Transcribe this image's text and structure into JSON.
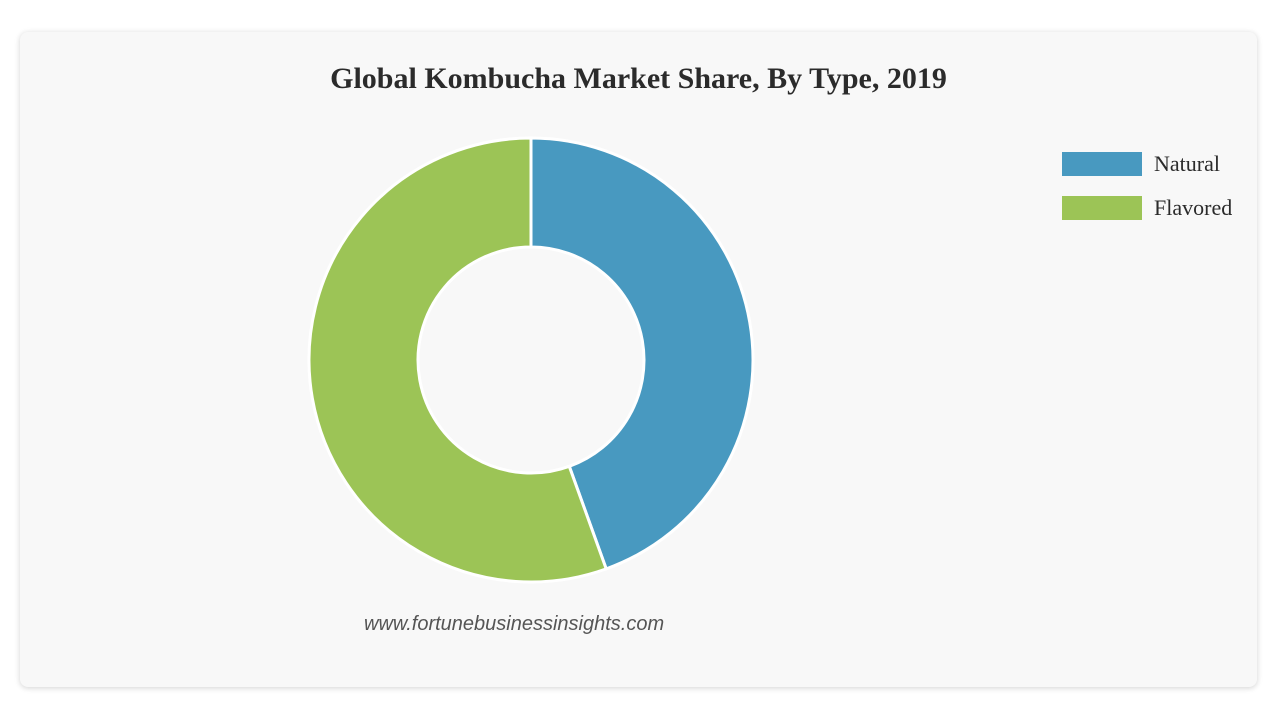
{
  "chart_data": {
    "type": "pie",
    "variant": "donut",
    "title": "Global Kombucha Market Share, By Type, 2019",
    "categories": [
      "Natural",
      "Flavored"
    ],
    "values": [
      44.5,
      55.5
    ],
    "colors": [
      "#4899c0",
      "#9cc456"
    ],
    "legend": {
      "placement": "top-right",
      "entries": [
        "Natural",
        "Flavored"
      ]
    },
    "source": "www.fortunebusinessinsights.com"
  }
}
